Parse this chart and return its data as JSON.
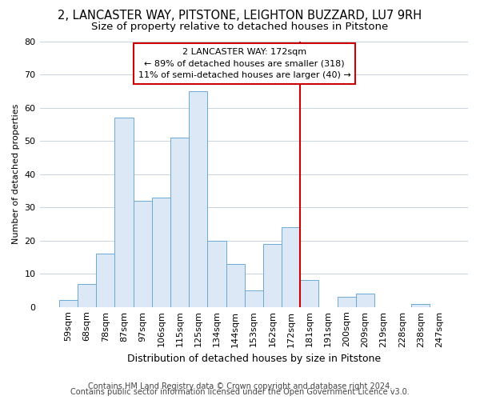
{
  "title1": "2, LANCASTER WAY, PITSTONE, LEIGHTON BUZZARD, LU7 9RH",
  "title2": "Size of property relative to detached houses in Pitstone",
  "xlabel": "Distribution of detached houses by size in Pitstone",
  "ylabel": "Number of detached properties",
  "bins": [
    "59sqm",
    "68sqm",
    "78sqm",
    "87sqm",
    "97sqm",
    "106sqm",
    "115sqm",
    "125sqm",
    "134sqm",
    "144sqm",
    "153sqm",
    "162sqm",
    "172sqm",
    "181sqm",
    "191sqm",
    "200sqm",
    "209sqm",
    "219sqm",
    "228sqm",
    "238sqm",
    "247sqm"
  ],
  "values": [
    2,
    7,
    16,
    57,
    32,
    33,
    51,
    65,
    20,
    13,
    5,
    19,
    24,
    8,
    0,
    3,
    4,
    0,
    0,
    1,
    0
  ],
  "bar_color": "#dce8f5",
  "bar_edge_color": "#6aaad4",
  "highlight_line_color": "#cc0000",
  "annotation_text": "2 LANCASTER WAY: 172sqm\n← 89% of detached houses are smaller (318)\n11% of semi-detached houses are larger (40) →",
  "annotation_box_color": "#cc0000",
  "ylim": [
    0,
    80
  ],
  "yticks": [
    0,
    10,
    20,
    30,
    40,
    50,
    60,
    70,
    80
  ],
  "grid_color": "#c8d4e0",
  "bg_color": "#ffffff",
  "footer1": "Contains HM Land Registry data © Crown copyright and database right 2024.",
  "footer2": "Contains public sector information licensed under the Open Government Licence v3.0.",
  "title1_fontsize": 10.5,
  "title2_fontsize": 9.5,
  "xlabel_fontsize": 9,
  "ylabel_fontsize": 8,
  "tick_fontsize": 8,
  "annotation_fontsize": 8,
  "footer_fontsize": 7
}
